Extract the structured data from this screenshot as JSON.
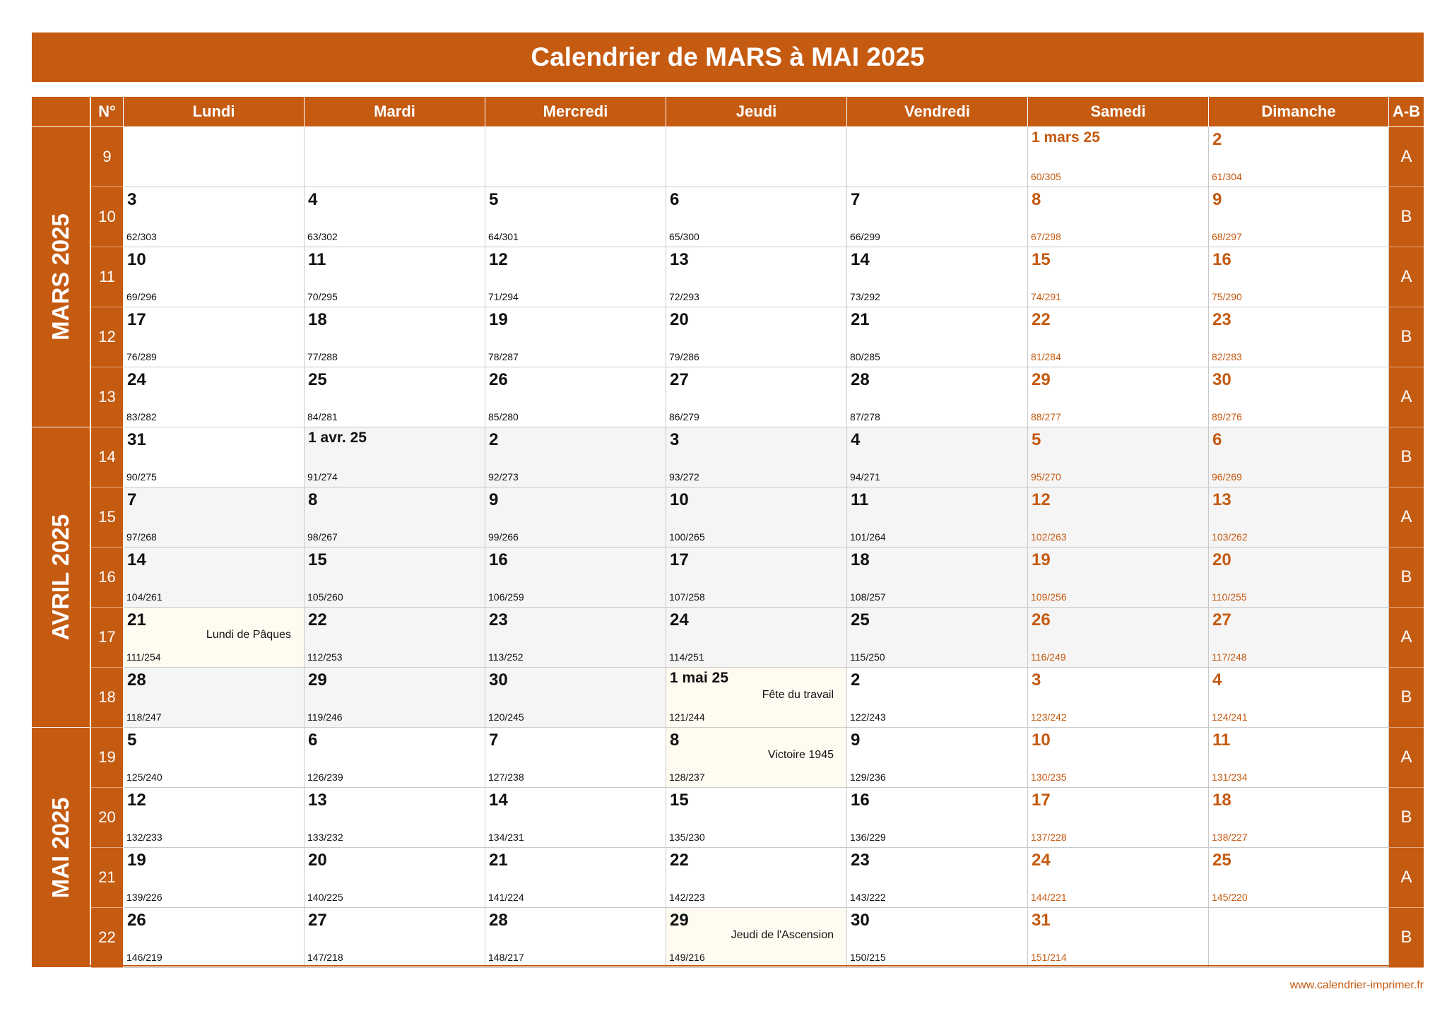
{
  "title": "Calendrier de MARS à MAI 2025",
  "headers": {
    "num": "N°",
    "days": [
      "Lundi",
      "Mardi",
      "Mercredi",
      "Jeudi",
      "Vendredi",
      "Samedi",
      "Dimanche"
    ],
    "ab": "A-B"
  },
  "months": [
    {
      "label": "MARS 2025",
      "rows": [
        0,
        4
      ]
    },
    {
      "label": "AVRIL 2025",
      "rows": [
        5,
        9
      ]
    },
    {
      "label": "MAI 2025",
      "rows": [
        10,
        13
      ]
    }
  ],
  "weeks": [
    {
      "num": "9",
      "ab": "A",
      "days": [
        null,
        null,
        null,
        null,
        null,
        {
          "d": "1 mars 25",
          "n": "60/305",
          "first": true
        },
        {
          "d": "2",
          "n": "61/304"
        }
      ]
    },
    {
      "num": "10",
      "ab": "B",
      "days": [
        {
          "d": "3",
          "n": "62/303"
        },
        {
          "d": "4",
          "n": "63/302"
        },
        {
          "d": "5",
          "n": "64/301"
        },
        {
          "d": "6",
          "n": "65/300"
        },
        {
          "d": "7",
          "n": "66/299"
        },
        {
          "d": "8",
          "n": "67/298"
        },
        {
          "d": "9",
          "n": "68/297"
        }
      ]
    },
    {
      "num": "11",
      "ab": "A",
      "days": [
        {
          "d": "10",
          "n": "69/296"
        },
        {
          "d": "11",
          "n": "70/295"
        },
        {
          "d": "12",
          "n": "71/294"
        },
        {
          "d": "13",
          "n": "72/293"
        },
        {
          "d": "14",
          "n": "73/292"
        },
        {
          "d": "15",
          "n": "74/291"
        },
        {
          "d": "16",
          "n": "75/290"
        }
      ]
    },
    {
      "num": "12",
      "ab": "B",
      "days": [
        {
          "d": "17",
          "n": "76/289"
        },
        {
          "d": "18",
          "n": "77/288"
        },
        {
          "d": "19",
          "n": "78/287"
        },
        {
          "d": "20",
          "n": "79/286"
        },
        {
          "d": "21",
          "n": "80/285"
        },
        {
          "d": "22",
          "n": "81/284"
        },
        {
          "d": "23",
          "n": "82/283"
        }
      ]
    },
    {
      "num": "13",
      "ab": "A",
      "days": [
        {
          "d": "24",
          "n": "83/282"
        },
        {
          "d": "25",
          "n": "84/281"
        },
        {
          "d": "26",
          "n": "85/280"
        },
        {
          "d": "27",
          "n": "86/279"
        },
        {
          "d": "28",
          "n": "87/278"
        },
        {
          "d": "29",
          "n": "88/277"
        },
        {
          "d": "30",
          "n": "89/276"
        }
      ]
    },
    {
      "num": "14",
      "ab": "B",
      "days": [
        {
          "d": "31",
          "n": "90/275"
        },
        {
          "d": "1 avr. 25",
          "n": "91/274",
          "first": true,
          "shade": true
        },
        {
          "d": "2",
          "n": "92/273",
          "shade": true
        },
        {
          "d": "3",
          "n": "93/272",
          "shade": true
        },
        {
          "d": "4",
          "n": "94/271",
          "shade": true
        },
        {
          "d": "5",
          "n": "95/270",
          "shade": true
        },
        {
          "d": "6",
          "n": "96/269",
          "shade": true
        }
      ]
    },
    {
      "num": "15",
      "ab": "A",
      "days": [
        {
          "d": "7",
          "n": "97/268",
          "shade": true
        },
        {
          "d": "8",
          "n": "98/267",
          "shade": true
        },
        {
          "d": "9",
          "n": "99/266",
          "shade": true
        },
        {
          "d": "10",
          "n": "100/265",
          "shade": true
        },
        {
          "d": "11",
          "n": "101/264",
          "shade": true
        },
        {
          "d": "12",
          "n": "102/263",
          "shade": true
        },
        {
          "d": "13",
          "n": "103/262",
          "shade": true
        }
      ]
    },
    {
      "num": "16",
      "ab": "B",
      "days": [
        {
          "d": "14",
          "n": "104/261",
          "shade": true
        },
        {
          "d": "15",
          "n": "105/260",
          "shade": true
        },
        {
          "d": "16",
          "n": "106/259",
          "shade": true
        },
        {
          "d": "17",
          "n": "107/258",
          "shade": true
        },
        {
          "d": "18",
          "n": "108/257",
          "shade": true
        },
        {
          "d": "19",
          "n": "109/256",
          "shade": true
        },
        {
          "d": "20",
          "n": "110/255",
          "shade": true
        }
      ]
    },
    {
      "num": "17",
      "ab": "A",
      "days": [
        {
          "d": "21",
          "n": "111/254",
          "h": "Lundi de Pâques",
          "hol": true
        },
        {
          "d": "22",
          "n": "112/253",
          "shade": true
        },
        {
          "d": "23",
          "n": "113/252",
          "shade": true
        },
        {
          "d": "24",
          "n": "114/251",
          "shade": true
        },
        {
          "d": "25",
          "n": "115/250",
          "shade": true
        },
        {
          "d": "26",
          "n": "116/249",
          "shade": true
        },
        {
          "d": "27",
          "n": "117/248",
          "shade": true
        }
      ]
    },
    {
      "num": "18",
      "ab": "B",
      "days": [
        {
          "d": "28",
          "n": "118/247",
          "shade": true
        },
        {
          "d": "29",
          "n": "119/246",
          "shade": true
        },
        {
          "d": "30",
          "n": "120/245",
          "shade": true
        },
        {
          "d": "1 mai 25",
          "n": "121/244",
          "first": true,
          "h": "Fête du travail",
          "hol": true
        },
        {
          "d": "2",
          "n": "122/243"
        },
        {
          "d": "3",
          "n": "123/242"
        },
        {
          "d": "4",
          "n": "124/241"
        }
      ]
    },
    {
      "num": "19",
      "ab": "A",
      "days": [
        {
          "d": "5",
          "n": "125/240"
        },
        {
          "d": "6",
          "n": "126/239"
        },
        {
          "d": "7",
          "n": "127/238"
        },
        {
          "d": "8",
          "n": "128/237",
          "h": "Victoire 1945",
          "hol": true
        },
        {
          "d": "9",
          "n": "129/236"
        },
        {
          "d": "10",
          "n": "130/235"
        },
        {
          "d": "11",
          "n": "131/234"
        }
      ]
    },
    {
      "num": "20",
      "ab": "B",
      "days": [
        {
          "d": "12",
          "n": "132/233"
        },
        {
          "d": "13",
          "n": "133/232"
        },
        {
          "d": "14",
          "n": "134/231"
        },
        {
          "d": "15",
          "n": "135/230"
        },
        {
          "d": "16",
          "n": "136/229"
        },
        {
          "d": "17",
          "n": "137/228"
        },
        {
          "d": "18",
          "n": "138/227"
        }
      ]
    },
    {
      "num": "21",
      "ab": "A",
      "days": [
        {
          "d": "19",
          "n": "139/226"
        },
        {
          "d": "20",
          "n": "140/225"
        },
        {
          "d": "21",
          "n": "141/224"
        },
        {
          "d": "22",
          "n": "142/223"
        },
        {
          "d": "23",
          "n": "143/222"
        },
        {
          "d": "24",
          "n": "144/221"
        },
        {
          "d": "25",
          "n": "145/220"
        }
      ]
    },
    {
      "num": "22",
      "ab": "B",
      "days": [
        {
          "d": "26",
          "n": "146/219"
        },
        {
          "d": "27",
          "n": "147/218"
        },
        {
          "d": "28",
          "n": "148/217"
        },
        {
          "d": "29",
          "n": "149/216",
          "h": "Jeudi de l'Ascension",
          "hol": true
        },
        {
          "d": "30",
          "n": "150/215"
        },
        {
          "d": "31",
          "n": "151/214"
        },
        null
      ]
    }
  ],
  "footer": "www.calendrier-imprimer.fr",
  "colors": {
    "accent": "#C55A11",
    "shade": "#f5f5f5",
    "holiday": "#fffbf1"
  }
}
